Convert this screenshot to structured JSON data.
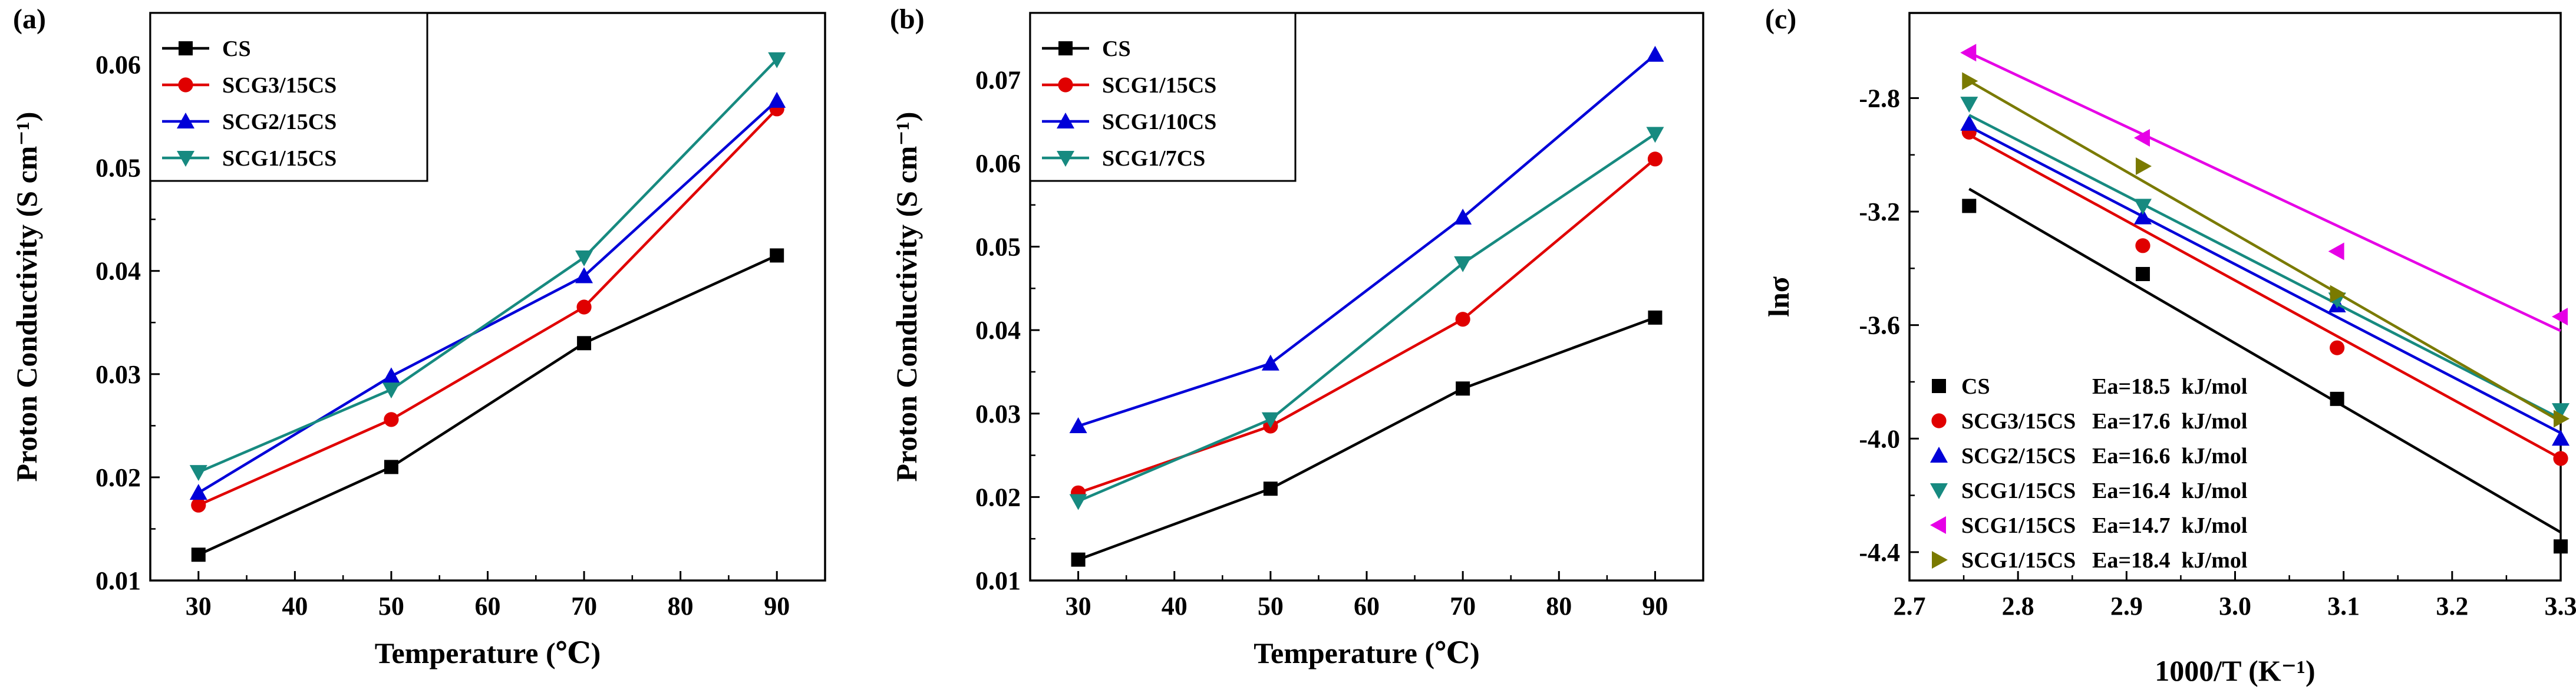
{
  "figure": {
    "description_panels": [
      "a",
      "b",
      "c"
    ]
  },
  "chart_data": [
    {
      "panel": "(a)",
      "type": "line",
      "xlabel": "Temperature (℃)",
      "ylabel": "Proton Conductivity (S cm⁻¹)",
      "xlim": [
        25,
        95
      ],
      "ylim": [
        0.01,
        0.065
      ],
      "xticks": [
        30,
        40,
        50,
        60,
        70,
        80,
        90
      ],
      "yticks": [
        0.01,
        0.02,
        0.03,
        0.04,
        0.05,
        0.06
      ],
      "x": [
        30,
        50,
        70,
        90
      ],
      "series": [
        {
          "name": "CS",
          "color": "#000000",
          "marker": "square",
          "values": [
            0.0125,
            0.021,
            0.033,
            0.0415
          ]
        },
        {
          "name": "SCG3/15CS",
          "color": "#e00000",
          "marker": "circle",
          "values": [
            0.0173,
            0.0256,
            0.0365,
            0.0557
          ]
        },
        {
          "name": "SCG2/15CS",
          "color": "#0000d8",
          "marker": "triangle-up",
          "values": [
            0.0185,
            0.0298,
            0.0395,
            0.0565
          ]
        },
        {
          "name": "SCG1/15CS",
          "color": "#178a80",
          "marker": "triangle-down",
          "values": [
            0.0205,
            0.0285,
            0.0413,
            0.0605
          ]
        }
      ]
    },
    {
      "panel": "(b)",
      "type": "line",
      "xlabel": "Temperature (℃)",
      "ylabel": "Proton Conductivity (S cm⁻¹)",
      "xlim": [
        25,
        95
      ],
      "ylim": [
        0.01,
        0.078
      ],
      "xticks": [
        30,
        40,
        50,
        60,
        70,
        80,
        90
      ],
      "yticks": [
        0.01,
        0.02,
        0.03,
        0.04,
        0.05,
        0.06,
        0.07
      ],
      "x": [
        30,
        50,
        70,
        90
      ],
      "series": [
        {
          "name": "CS",
          "color": "#000000",
          "marker": "square",
          "values": [
            0.0125,
            0.021,
            0.033,
            0.0415
          ]
        },
        {
          "name": "SCG1/15CS",
          "color": "#e00000",
          "marker": "circle",
          "values": [
            0.0205,
            0.0285,
            0.0413,
            0.0605
          ]
        },
        {
          "name": "SCG1/10CS",
          "color": "#0000d8",
          "marker": "triangle-up",
          "values": [
            0.0285,
            0.036,
            0.0535,
            0.073
          ]
        },
        {
          "name": "SCG1/7CS",
          "color": "#178a80",
          "marker": "triangle-down",
          "values": [
            0.0195,
            0.0293,
            0.048,
            0.0635
          ]
        }
      ]
    },
    {
      "panel": "(c)",
      "type": "scatter",
      "xlabel": "1000/T (K⁻¹)",
      "ylabel": "lnσ",
      "xlim": [
        2.7,
        3.3
      ],
      "ylim": [
        -4.5,
        -2.5
      ],
      "xticks": [
        2.7,
        2.8,
        2.9,
        3.0,
        3.1,
        3.2,
        3.3
      ],
      "xtick_labels": [
        "2.7",
        "2.8",
        "2.9",
        "3.0",
        "3.1",
        "3.2",
        "3.3"
      ],
      "yticks": [
        -4.4,
        -4.0,
        -3.6,
        -3.2,
        -2.8
      ],
      "ytick_labels": [
        "-4.4",
        "-4.0",
        "-3.6",
        "-3.2",
        "-2.8"
      ],
      "x": [
        2.755,
        2.915,
        3.094,
        3.3
      ],
      "series": [
        {
          "name": "CS",
          "ea": "Ea=18.5  kJ/mol",
          "color": "#000000",
          "marker": "square",
          "values": [
            -3.18,
            -3.42,
            -3.86,
            -4.38
          ],
          "fit": [
            -3.12,
            -4.33
          ]
        },
        {
          "name": "SCG3/15CS",
          "ea": "Ea=17.6  kJ/mol",
          "color": "#e00000",
          "marker": "circle",
          "values": [
            -2.92,
            -3.32,
            -3.68,
            -4.07
          ],
          "fit": [
            -2.93,
            -4.07
          ]
        },
        {
          "name": "SCG2/15CS",
          "ea": "Ea=16.6  kJ/mol",
          "color": "#0000d8",
          "marker": "triangle-up",
          "values": [
            -2.89,
            -3.22,
            -3.53,
            -4.0
          ],
          "fit": [
            -2.9,
            -3.98
          ]
        },
        {
          "name": "SCG1/15CS",
          "ea": "Ea=16.4  kJ/mol",
          "color": "#178a80",
          "marker": "triangle-down",
          "values": [
            -2.82,
            -3.18,
            -3.51,
            -3.9
          ],
          "fit": [
            -2.86,
            -3.93
          ]
        },
        {
          "name": "SCG1/15CS",
          "ea": "Ea=14.7  kJ/mol",
          "color": "#e600e6",
          "marker": "triangle-left",
          "values": [
            -2.64,
            -2.94,
            -3.34,
            -3.57
          ],
          "fit": [
            -2.64,
            -3.62
          ]
        },
        {
          "name": "SCG1/15CS",
          "ea": "Ea=18.4  kJ/mol",
          "color": "#7a7a00",
          "marker": "triangle-right",
          "values": [
            -2.74,
            -3.04,
            -3.49,
            -3.93
          ],
          "fit": [
            -2.74,
            -3.94
          ]
        }
      ]
    }
  ]
}
